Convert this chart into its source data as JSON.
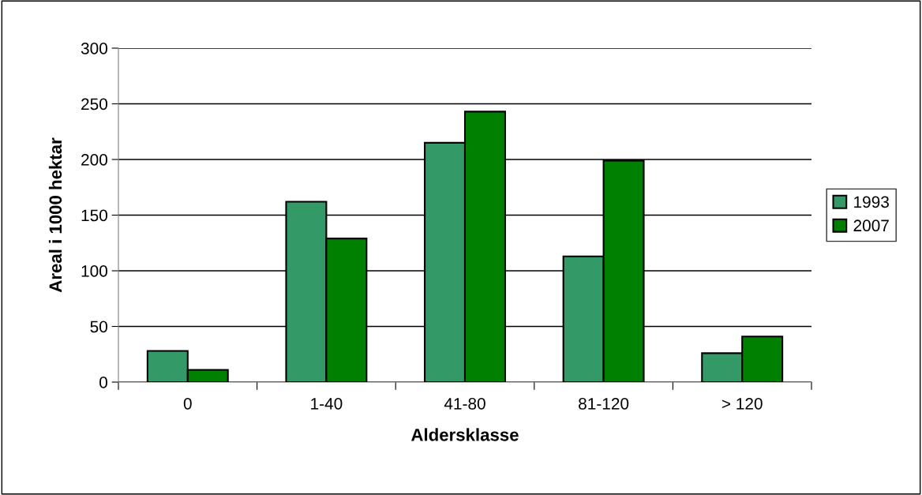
{
  "chart_data": {
    "type": "bar",
    "xlabel": "Aldersklasse",
    "ylabel": "Areal i 1000 hektar",
    "categories": [
      "0",
      "1-40",
      "41-80",
      "81-120",
      "> 120"
    ],
    "series": [
      {
        "name": "1993",
        "color": "#339966",
        "values": [
          28,
          162,
          215,
          113,
          26
        ]
      },
      {
        "name": "2007",
        "color": "#008000",
        "values": [
          11,
          129,
          243,
          199,
          41
        ]
      }
    ],
    "ylim": [
      0,
      300
    ],
    "yticks": [
      0,
      50,
      100,
      150,
      200,
      250,
      300
    ],
    "grid": "y",
    "legend": "right"
  }
}
